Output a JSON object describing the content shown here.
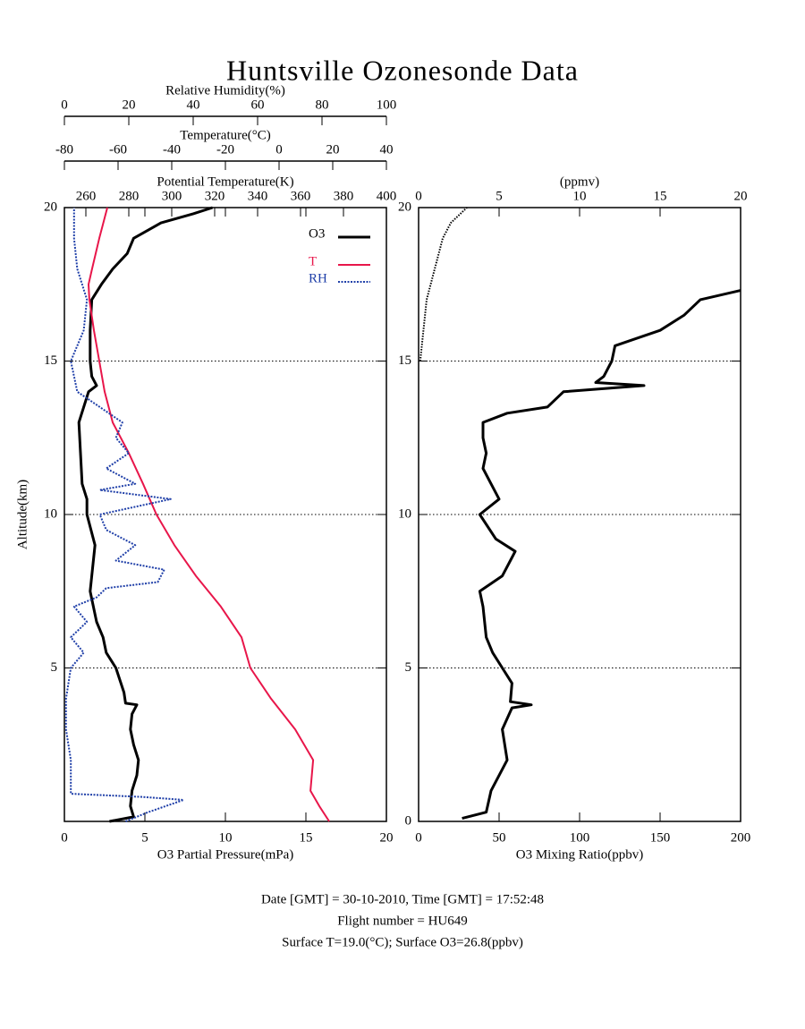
{
  "title": "Huntsville Ozonesonde Data",
  "footer": [
    "Date [GMT] = 30-10-2010,  Time [GMT] = 17:52:48",
    "Flight number = HU649",
    "Surface T=19.0(°C); Surface O3=26.8(ppbv)"
  ],
  "chart_data": [
    {
      "type": "line",
      "ylabel": "Altitude(km)",
      "ylim": [
        0,
        20
      ],
      "yticks": [
        5,
        10,
        15,
        20
      ],
      "grid": true,
      "x_axes": [
        {
          "label": "O3 Partial Pressure(mPa)",
          "lim": [
            0,
            20
          ],
          "ticks": [
            0,
            5,
            10,
            15,
            20
          ]
        },
        {
          "label": "Relative Humidity(%)",
          "lim": [
            0,
            100
          ],
          "ticks": [
            0,
            20,
            40,
            60,
            80,
            100
          ]
        },
        {
          "label": "Temperature(°C)",
          "lim": [
            -80,
            40
          ],
          "ticks": [
            -80,
            -60,
            -40,
            -20,
            0,
            20,
            40
          ]
        },
        {
          "label": "Potential Temperature(K)",
          "lim": [
            250,
            400
          ],
          "ticks": [
            260,
            280,
            300,
            320,
            340,
            360,
            380,
            400
          ]
        }
      ],
      "series": [
        {
          "name": "O3",
          "color": "#000000",
          "axis": 0,
          "y": [
            0,
            0.15,
            0.5,
            1,
            1.5,
            2,
            2.5,
            3,
            3.5,
            3.8,
            3.85,
            4.2,
            5,
            5.5,
            6,
            6.5,
            7,
            7.5,
            8,
            9,
            10,
            10.5,
            11,
            12,
            13,
            14,
            14.2,
            14.5,
            15,
            16,
            17,
            17.5,
            18,
            18.5,
            19,
            19.5,
            19.8,
            20
          ],
          "x": [
            2.8,
            4.3,
            4.1,
            4.2,
            4.5,
            4.6,
            4.3,
            4.1,
            4.2,
            4.5,
            3.8,
            3.7,
            3.2,
            2.6,
            2.4,
            2.0,
            1.8,
            1.6,
            1.7,
            1.9,
            1.4,
            1.4,
            1.1,
            1.0,
            0.9,
            1.5,
            2.0,
            1.7,
            1.6,
            1.6,
            1.7,
            2.3,
            3.0,
            3.9,
            4.3,
            6.0,
            8.0,
            9.2
          ]
        },
        {
          "name": "T",
          "color": "#e8164a",
          "axis": 2,
          "y": [
            0,
            0.5,
            1,
            2,
            3,
            4,
            5,
            6,
            7,
            8,
            9,
            10,
            11,
            12,
            13,
            14,
            15,
            16,
            17,
            17.5,
            18,
            19,
            20
          ],
          "x": [
            18.7,
            15,
            11.7,
            12.7,
            6,
            -3,
            -10.7,
            -14,
            -21.7,
            -31,
            -39,
            -45.7,
            -50.7,
            -56,
            -62,
            -65,
            -67,
            -69,
            -70.7,
            -71,
            -69.7,
            -67,
            -64
          ]
        },
        {
          "name": "RH",
          "color": "#1f3fa8",
          "axis": 1,
          "y": [
            0,
            0.3,
            0.7,
            0.8,
            0.9,
            1,
            2,
            3,
            4,
            5,
            5.5,
            6,
            6.5,
            7,
            7.3,
            7.6,
            7.8,
            8.2,
            8.5,
            9,
            9.5,
            10,
            10.5,
            10.8,
            11,
            11.5,
            12,
            12.5,
            13,
            13.5,
            14,
            15,
            16,
            17,
            18,
            19,
            20
          ],
          "x": [
            19,
            26,
            37,
            24,
            2,
            2,
            2,
            0.5,
            0.5,
            2,
            6,
            2,
            7,
            3,
            10,
            13,
            29,
            31,
            16,
            22,
            13,
            11,
            33,
            11,
            22,
            13,
            20,
            16,
            18,
            11,
            4,
            2,
            6,
            7,
            4,
            3,
            3
          ]
        }
      ]
    },
    {
      "type": "line",
      "ylim": [
        0,
        20
      ],
      "yticks": [
        0,
        5,
        10,
        15,
        20
      ],
      "grid": true,
      "x_axes": [
        {
          "label": "O3 Mixing Ratio(ppbv)",
          "lim": [
            0,
            200
          ],
          "ticks": [
            0,
            50,
            100,
            150,
            200
          ]
        },
        {
          "label": "(ppmv)",
          "lim": [
            0,
            20
          ],
          "ticks": [
            0,
            5,
            10,
            15,
            20
          ]
        }
      ],
      "series": [
        {
          "color": "#000000",
          "axis": 0,
          "y": [
            0.1,
            0.3,
            1,
            2,
            3,
            3.7,
            3.8,
            3.9,
            4.5,
            5,
            5.5,
            6,
            7,
            7.5,
            8,
            8.5,
            8.8,
            9.2,
            10,
            10.5,
            11,
            11.5,
            12,
            12.5,
            13,
            13.3,
            13.5,
            14,
            14.2,
            14.3,
            14.5,
            15,
            15.5,
            16,
            16.5,
            17,
            17.3
          ],
          "x": [
            27,
            42,
            45,
            55,
            52,
            58,
            70,
            57,
            58,
            52,
            46,
            42,
            40,
            38,
            52,
            57,
            60,
            48,
            38,
            50,
            45,
            40,
            42,
            40,
            40,
            55,
            80,
            90,
            140,
            110,
            115,
            120,
            122,
            150,
            165,
            175,
            200
          ]
        },
        {
          "color": "#000000",
          "axis": 1,
          "y": [
            15,
            16,
            17,
            18,
            19,
            19.5,
            20
          ],
          "x": [
            0.1,
            0.3,
            0.5,
            1,
            1.5,
            2,
            3
          ]
        }
      ]
    }
  ]
}
